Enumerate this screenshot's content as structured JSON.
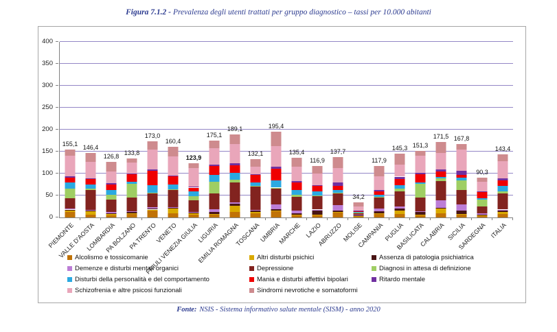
{
  "title": {
    "prefix": "Figura 7.1.2 -",
    "text": "Prevalenza degli utenti trattati per gruppo diagnostico – tassi per 10.000 abitanti"
  },
  "source": {
    "prefix": "Fonte:",
    "text": "NSIS - Sistema informativo salute mentale (SISM) - anno 2020"
  },
  "colors": {
    "title_text": "#2B3A8F",
    "gridline": "#9386C6",
    "axis": "#808080",
    "box_border": "#A6A6A6"
  },
  "chart_data": {
    "type": "bar",
    "stacked": true,
    "title": "Figura 7.1.2 - Prevalenza degli utenti trattati per gruppo diagnostico – tassi per 10.000 abitanti",
    "xlabel": "",
    "ylabel": "",
    "ylim": [
      0,
      400
    ],
    "ytick_step": 50,
    "grid": true,
    "legend_position": "bottom, 3 columns inside frame",
    "categories": [
      "PIEMONTE",
      "VALLE D'AOSTA",
      "LOMBARDIA",
      "PA BOLZANO",
      "PA TRENTO",
      "VENETO",
      "FRIULI VENEZIA GIULIA",
      "LIGURIA",
      "EMILIA ROMAGNA",
      "TOSCANA",
      "UMBRIA",
      "MARCHE",
      "LAZIO",
      "ABRUZZO",
      "MOLISE",
      "CAMPANIA",
      "PUGLIA",
      "BASILICATA",
      "CALABRIA",
      "SICILIA",
      "SARDEGNA",
      "ITALIA"
    ],
    "totals": [
      155.1,
      146.4,
      126.8,
      133.8,
      173.0,
      160.4,
      123.9,
      175.1,
      189.1,
      132.1,
      195.4,
      135.4,
      116.9,
      137.7,
      34.2,
      117.9,
      145.3,
      151.3,
      171.5,
      167.8,
      90.3,
      143.4
    ],
    "total_labels": [
      "155,1",
      "146,4",
      "126,8",
      "133,8",
      "173,0",
      "160,4",
      "123,9",
      "175,1",
      "189,1",
      "132,1",
      "195,4",
      "135,4",
      "116,9",
      "137,7",
      "34,2",
      "117,9",
      "145,3",
      "151,3",
      "171,5",
      "167,8",
      "90,3",
      "143,4"
    ],
    "bold_total_index": 6,
    "series": [
      {
        "name": "Alcolismo e tossicomanie",
        "color": "#C07206",
        "values": [
          13,
          6,
          5,
          9,
          16,
          9,
          7,
          6,
          13,
          10,
          14,
          6,
          5,
          12,
          2,
          9,
          8,
          6,
          10,
          7,
          4,
          8
        ]
      },
      {
        "name": "Altri disturbi psichici",
        "color": "#D9A900",
        "values": [
          3,
          8,
          3,
          1,
          2,
          11,
          2,
          2,
          13,
          2,
          2,
          1,
          1,
          1,
          1,
          1,
          8,
          1,
          10,
          1,
          1,
          4
        ]
      },
      {
        "name": "Assenza di patologia psichiatrica",
        "color": "#481414",
        "values": [
          2,
          2,
          2,
          2,
          3,
          2,
          2,
          4,
          5,
          3,
          3,
          2,
          10,
          2,
          3,
          4,
          5,
          5,
          2,
          7,
          2,
          3
        ]
      },
      {
        "name": "Demenze e disturbi mentali organici",
        "color": "#BC7DD6",
        "values": [
          2,
          1,
          2,
          2,
          2,
          2,
          2,
          7,
          4,
          2,
          10,
          7,
          2,
          13,
          1,
          6,
          4,
          2,
          17,
          15,
          2,
          3
        ]
      },
      {
        "name": "Depressione",
        "color": "#82231F",
        "values": [
          24,
          45,
          28,
          31,
          32,
          38,
          26,
          35,
          44,
          53,
          37,
          31,
          30,
          27,
          4,
          25,
          34,
          31,
          44,
          33,
          16,
          37
        ]
      },
      {
        "name": "Diagnosi in attesa di definizione",
        "color": "#9FCE63",
        "values": [
          21,
          3,
          12,
          32,
          2,
          2,
          9,
          28,
          7,
          2,
          2,
          5,
          2,
          2,
          0.5,
          2,
          7,
          32,
          6,
          22,
          16,
          5
        ]
      },
      {
        "name": "Disturbi della personalità e del comportamento",
        "color": "#2BA9E1",
        "values": [
          15,
          10,
          11,
          5,
          16,
          11,
          12,
          15,
          16,
          8,
          16,
          10,
          10,
          6,
          1,
          5,
          8,
          3,
          3,
          5,
          3,
          12
        ]
      },
      {
        "name": "Mania e disturbi affettivi bipolari",
        "color": "#EF0000",
        "values": [
          10,
          12,
          12,
          17,
          34,
          18,
          8,
          20,
          17,
          17,
          27,
          18,
          12,
          9,
          3,
          7,
          14,
          19,
          12,
          7,
          14,
          13
        ]
      },
      {
        "name": "Ritardo mentale",
        "color": "#7030A0",
        "values": [
          4,
          2,
          3,
          1,
          3,
          3,
          3,
          3,
          4,
          2,
          4,
          3,
          2,
          7,
          0.7,
          4,
          5,
          2,
          5,
          10,
          1,
          4
        ]
      },
      {
        "name": "Schizofrenia e altre psicosi funzionali",
        "color": "#E9A6BA",
        "values": [
          46.1,
          38,
          27,
          25,
          45,
          43,
          41,
          38,
          44,
          17,
          48,
          32,
          26,
          33,
          9,
          31,
          27,
          39,
          38,
          48,
          23,
          39
        ]
      },
      {
        "name": "Sindromi nevrotiche e somatoformi",
        "color": "#CE8B8E",
        "values": [
          15,
          19.4,
          21.8,
          8.8,
          18,
          21.4,
          11.9,
          17.1,
          22.1,
          16.1,
          32.4,
          20.4,
          16.9,
          25.7,
          9,
          23.9,
          25.3,
          11.3,
          24.5,
          12.8,
          8.3,
          15.4
        ]
      }
    ]
  }
}
